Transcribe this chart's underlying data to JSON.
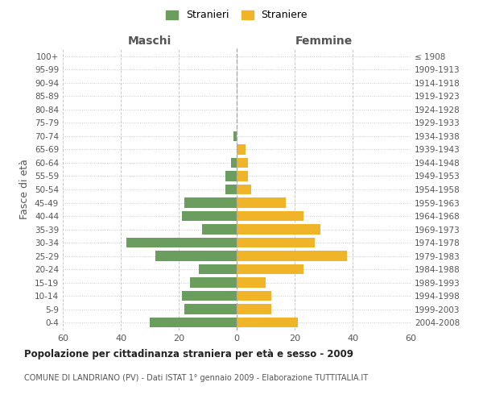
{
  "age_groups": [
    "0-4",
    "5-9",
    "10-14",
    "15-19",
    "20-24",
    "25-29",
    "30-34",
    "35-39",
    "40-44",
    "45-49",
    "50-54",
    "55-59",
    "60-64",
    "65-69",
    "70-74",
    "75-79",
    "80-84",
    "85-89",
    "90-94",
    "95-99",
    "100+"
  ],
  "birth_years": [
    "2004-2008",
    "1999-2003",
    "1994-1998",
    "1989-1993",
    "1984-1988",
    "1979-1983",
    "1974-1978",
    "1969-1973",
    "1964-1968",
    "1959-1963",
    "1954-1958",
    "1949-1953",
    "1944-1948",
    "1939-1943",
    "1934-1938",
    "1929-1933",
    "1924-1928",
    "1919-1923",
    "1914-1918",
    "1909-1913",
    "≤ 1908"
  ],
  "males": [
    30,
    18,
    19,
    16,
    13,
    28,
    38,
    12,
    19,
    18,
    4,
    4,
    2,
    0,
    1,
    0,
    0,
    0,
    0,
    0,
    0
  ],
  "females": [
    21,
    12,
    12,
    10,
    23,
    38,
    27,
    29,
    23,
    17,
    5,
    4,
    4,
    3,
    0,
    0,
    0,
    0,
    0,
    0,
    0
  ],
  "male_color": "#6b9e5e",
  "female_color": "#f0b429",
  "background_color": "#ffffff",
  "grid_color": "#cccccc",
  "title": "Popolazione per cittadinanza straniera per età e sesso - 2009",
  "subtitle": "COMUNE DI LANDRIANO (PV) - Dati ISTAT 1° gennaio 2009 - Elaborazione TUTTITALIA.IT",
  "xlabel_left": "Maschi",
  "xlabel_right": "Femmine",
  "ylabel_left": "Fasce di età",
  "legend_male": "Stranieri",
  "legend_female": "Straniere",
  "xlim": 60,
  "bar_height": 0.75
}
